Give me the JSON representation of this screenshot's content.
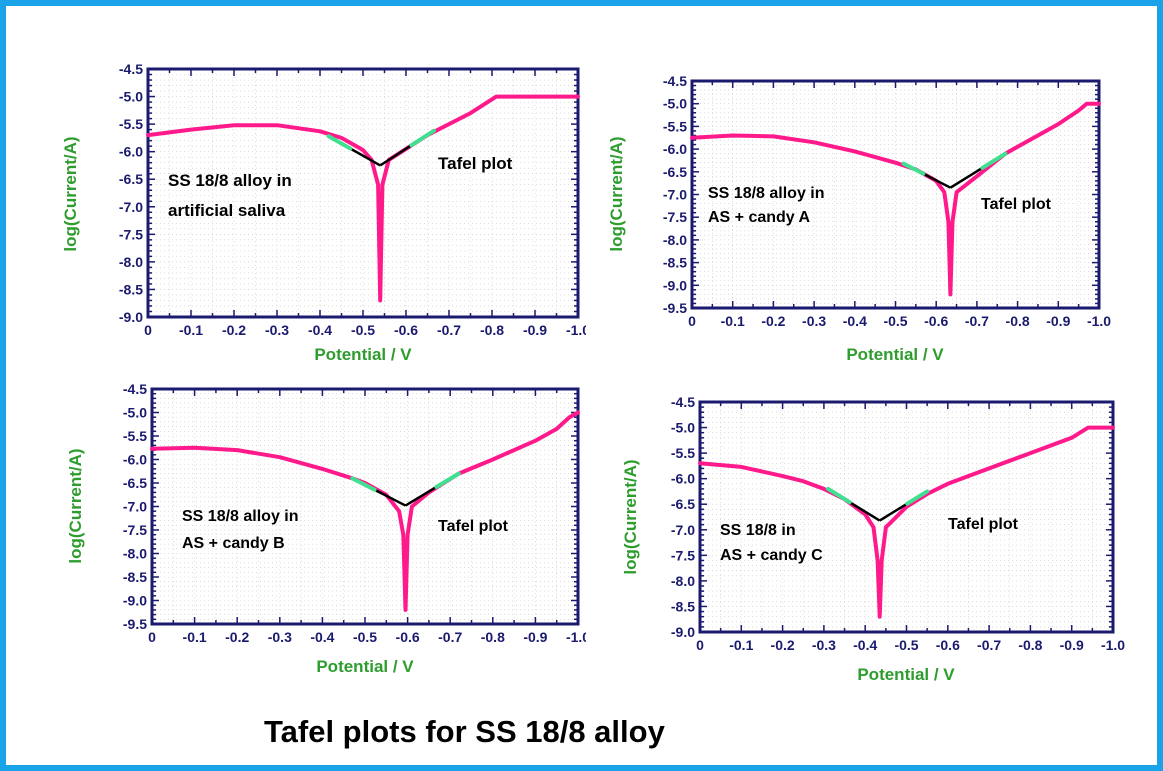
{
  "caption": "Tafel plots for SS 18/8 alloy",
  "colors": {
    "curve": "#ff1a8c",
    "tafel_segment": "#40e090",
    "tangent": "#000000",
    "axis": "#1a1a6e",
    "grid": "#c8c8c8",
    "axis_label": "#2e9c2e",
    "page_border": "#1aa3e8"
  },
  "chart_data": [
    {
      "type": "line",
      "xlabel": "Potential / V",
      "ylabel": "log(Current/A)",
      "annotations": [
        "SS 18/8 alloy in",
        "artificial saliva",
        "Tafel plot"
      ],
      "xlim": [
        0,
        -1.0
      ],
      "ylim": [
        -9.0,
        -4.5
      ],
      "x_ticks": [
        "0",
        "-0.1",
        "-0.2",
        "-0.3",
        "-0.4",
        "-0.5",
        "-0.6",
        "-0.7",
        "-0.8",
        "-0.9",
        "-1.0"
      ],
      "y_ticks": [
        "-4.5",
        "-5.0",
        "-5.5",
        "-6.0",
        "-6.5",
        "-7.0",
        "-7.5",
        "-8.0",
        "-8.5",
        "-9.0"
      ],
      "corrosion_potential": -0.54,
      "minimum_log_current": -8.7,
      "cathodic_branch": {
        "x": [
          0,
          -0.1,
          -0.2,
          -0.3,
          -0.4,
          -0.45,
          -0.5,
          -0.52,
          -0.535
        ],
        "y": [
          -5.7,
          -5.6,
          -5.52,
          -5.52,
          -5.63,
          -5.75,
          -5.97,
          -6.15,
          -6.6
        ]
      },
      "anodic_branch": {
        "x": [
          -0.545,
          -0.56,
          -0.6,
          -0.65,
          -0.7,
          -0.75,
          -0.79,
          -0.81,
          -0.9,
          -1.0
        ],
        "y": [
          -6.6,
          -6.15,
          -5.95,
          -5.7,
          -5.5,
          -5.3,
          -5.1,
          -5.0,
          -5.0,
          -5.0
        ]
      },
      "tangent_lines": {
        "cathodic": {
          "x": [
            -0.42,
            -0.54
          ],
          "y": [
            -5.72,
            -6.25
          ]
        },
        "anodic": {
          "x": [
            -0.54,
            -0.665
          ],
          "y": [
            -6.25,
            -5.62
          ]
        }
      }
    },
    {
      "type": "line",
      "xlabel": "Potential / V",
      "ylabel": "log(Current/A)",
      "annotations": [
        "SS 18/8 alloy in",
        "AS + candy A",
        "Tafel plot"
      ],
      "xlim": [
        0,
        -1.0
      ],
      "ylim": [
        -9.5,
        -4.5
      ],
      "x_ticks": [
        "0",
        "-0.1",
        "-0.2",
        "-0.3",
        "-0.4",
        "-0.5",
        "-0.6",
        "-0.7",
        "-0.8",
        "-0.9",
        "-1.0"
      ],
      "y_ticks": [
        "-4.5",
        "-5.0",
        "-5.5",
        "-6.0",
        "-6.5",
        "-7.0",
        "-7.5",
        "-8.0",
        "-8.5",
        "-9.0",
        "-9.5"
      ],
      "corrosion_potential": -0.635,
      "minimum_log_current": -9.2,
      "cathodic_branch": {
        "x": [
          0,
          -0.1,
          -0.2,
          -0.3,
          -0.4,
          -0.5,
          -0.55,
          -0.6,
          -0.62,
          -0.63
        ],
        "y": [
          -5.75,
          -5.7,
          -5.72,
          -5.85,
          -6.05,
          -6.3,
          -6.45,
          -6.7,
          -6.95,
          -7.6
        ]
      },
      "anodic_branch": {
        "x": [
          -0.64,
          -0.65,
          -0.7,
          -0.77,
          -0.8,
          -0.85,
          -0.9,
          -0.95,
          -0.97,
          -1.0
        ],
        "y": [
          -7.6,
          -6.95,
          -6.6,
          -6.1,
          -5.95,
          -5.7,
          -5.45,
          -5.15,
          -5.0,
          -5.0
        ]
      },
      "tangent_lines": {
        "cathodic": {
          "x": [
            -0.52,
            -0.635
          ],
          "y": [
            -6.32,
            -6.85
          ]
        },
        "anodic": {
          "x": [
            -0.635,
            -0.77
          ],
          "y": [
            -6.85,
            -6.1
          ]
        }
      }
    },
    {
      "type": "line",
      "xlabel": "Potential / V",
      "ylabel": "log(Current/A)",
      "annotations": [
        "SS 18/8 alloy in",
        "AS + candy B",
        "Tafel plot"
      ],
      "xlim": [
        0,
        -1.0
      ],
      "ylim": [
        -9.5,
        -4.5
      ],
      "x_ticks": [
        "0",
        "-0.1",
        "-0.2",
        "-0.3",
        "-0.4",
        "-0.5",
        "-0.6",
        "-0.7",
        "-0.8",
        "-0.9",
        "-1.0"
      ],
      "y_ticks": [
        "-4.5",
        "-5.0",
        "-5.5",
        "-6.0",
        "-6.5",
        "-7.0",
        "-7.5",
        "-8.0",
        "-8.5",
        "-9.0",
        "-9.5"
      ],
      "corrosion_potential": -0.595,
      "minimum_log_current": -9.2,
      "cathodic_branch": {
        "x": [
          0,
          -0.1,
          -0.2,
          -0.3,
          -0.4,
          -0.47,
          -0.5,
          -0.55,
          -0.58,
          -0.59
        ],
        "y": [
          -5.77,
          -5.75,
          -5.8,
          -5.95,
          -6.2,
          -6.4,
          -6.5,
          -6.75,
          -7.1,
          -7.6
        ]
      },
      "anodic_branch": {
        "x": [
          -0.6,
          -0.61,
          -0.65,
          -0.72,
          -0.8,
          -0.9,
          -0.95,
          -0.98,
          -1.0
        ],
        "y": [
          -7.6,
          -7.0,
          -6.7,
          -6.3,
          -6.0,
          -5.6,
          -5.35,
          -5.1,
          -5.0
        ]
      },
      "tangent_lines": {
        "cathodic": {
          "x": [
            -0.47,
            -0.595
          ],
          "y": [
            -6.4,
            -6.98
          ]
        },
        "anodic": {
          "x": [
            -0.595,
            -0.72
          ],
          "y": [
            -6.98,
            -6.3
          ]
        }
      }
    },
    {
      "type": "line",
      "xlabel": "Potential / V",
      "ylabel": "log(Current/A)",
      "annotations": [
        "SS 18/8 in",
        "AS + candy C",
        "Tafel plot"
      ],
      "xlim": [
        0,
        -1.0
      ],
      "ylim": [
        -9.0,
        -4.5
      ],
      "x_ticks": [
        "0",
        "-0.1",
        "-0.2",
        "-0.3",
        "-0.4",
        "-0.5",
        "-0.6",
        "-0.7",
        "-0.8",
        "-0.9",
        "-1.0"
      ],
      "y_ticks": [
        "-4.5",
        "-5.0",
        "-5.5",
        "-6.0",
        "-6.5",
        "-7.0",
        "-7.5",
        "-8.0",
        "-8.5",
        "-9.0"
      ],
      "corrosion_potential": -0.435,
      "minimum_log_current": -8.7,
      "cathodic_branch": {
        "x": [
          0,
          -0.1,
          -0.2,
          -0.25,
          -0.3,
          -0.35,
          -0.4,
          -0.42,
          -0.43
        ],
        "y": [
          -5.7,
          -5.77,
          -5.95,
          -6.05,
          -6.2,
          -6.4,
          -6.7,
          -6.95,
          -7.6
        ]
      },
      "anodic_branch": {
        "x": [
          -0.44,
          -0.45,
          -0.5,
          -0.55,
          -0.6,
          -0.7,
          -0.8,
          -0.9,
          -0.94,
          -1.0
        ],
        "y": [
          -7.6,
          -6.95,
          -6.55,
          -6.3,
          -6.1,
          -5.8,
          -5.5,
          -5.2,
          -5.0,
          -5.0
        ]
      },
      "tangent_lines": {
        "cathodic": {
          "x": [
            -0.31,
            -0.435
          ],
          "y": [
            -6.2,
            -6.82
          ]
        },
        "anodic": {
          "x": [
            -0.435,
            -0.55
          ],
          "y": [
            -6.82,
            -6.25
          ]
        }
      }
    }
  ]
}
